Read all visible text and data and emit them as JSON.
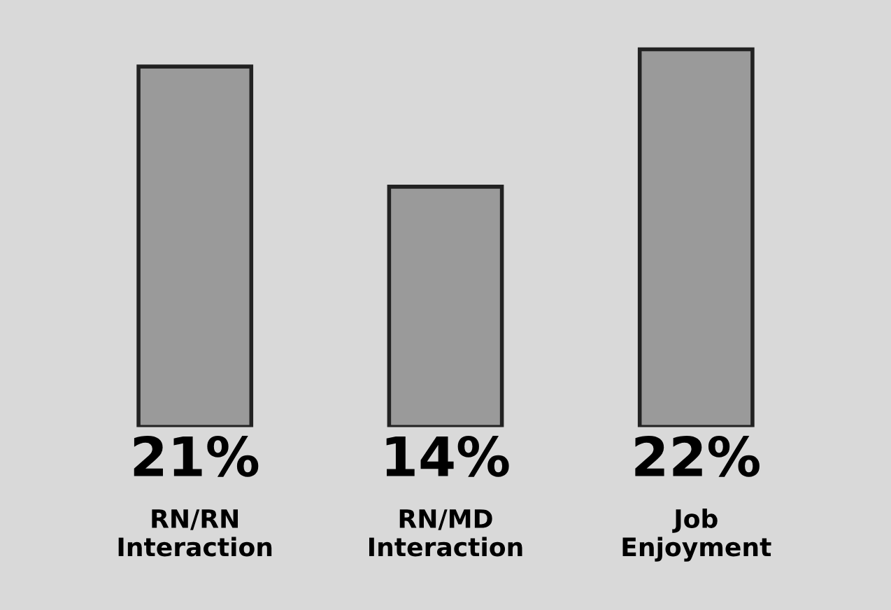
{
  "chart_data": {
    "type": "bar",
    "categories": [
      "RN/RN\nInteraction",
      "RN/MD\nInteraction",
      "Job\nEnjoyment"
    ],
    "values": [
      21,
      14,
      22
    ],
    "value_labels": [
      "21%",
      "14%",
      "22%"
    ],
    "color": "#9a9a9a",
    "grid": false,
    "legend": false
  }
}
